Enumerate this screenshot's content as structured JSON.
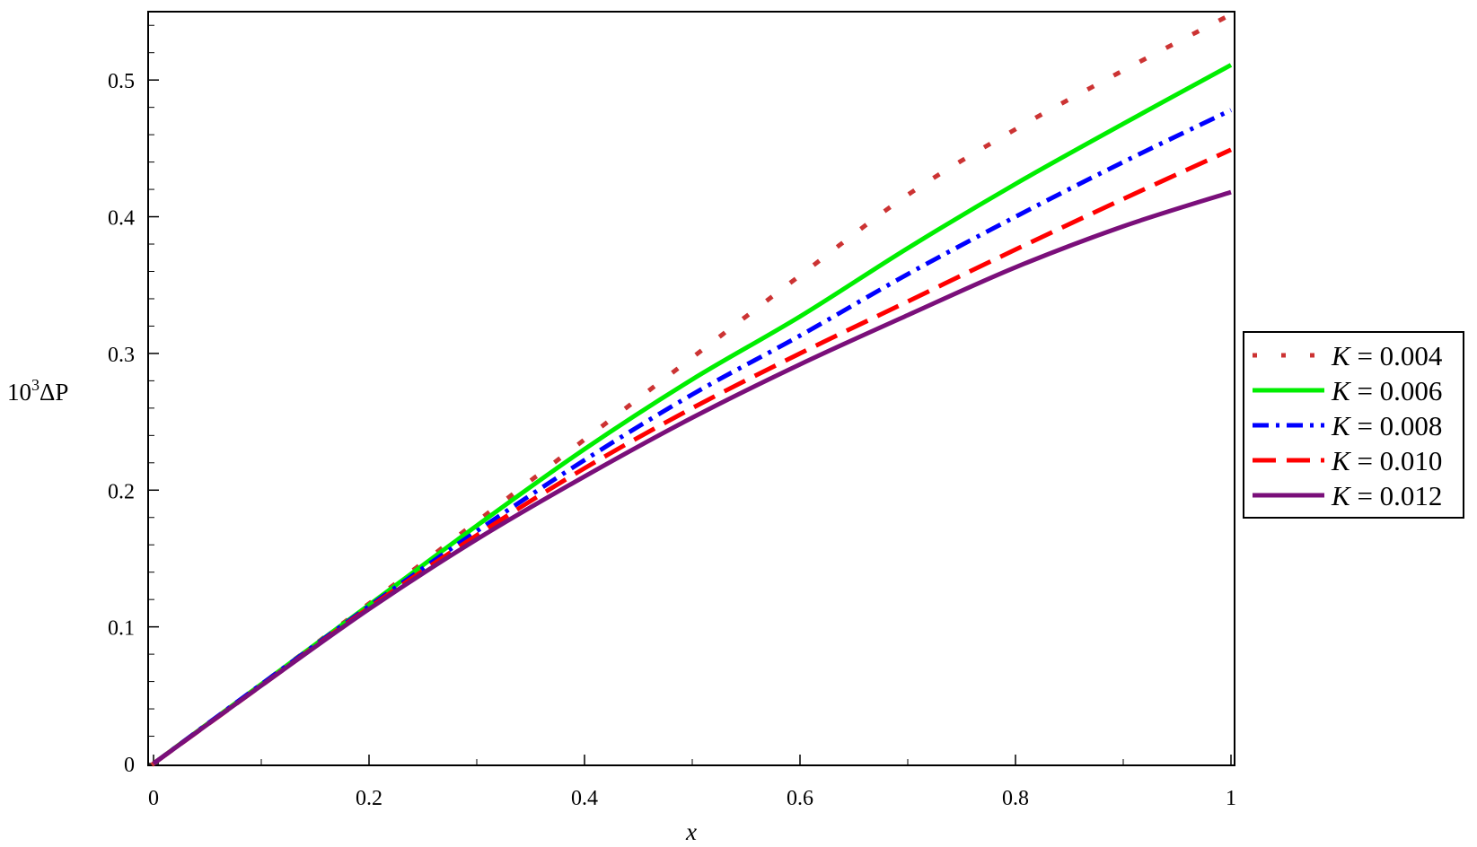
{
  "chart_data": {
    "type": "line",
    "xlabel": "x",
    "ylabel": {
      "base": "10",
      "sup": "3",
      "rest": "ΔP"
    },
    "xlim": [
      0,
      1
    ],
    "ylim": [
      0,
      0.55
    ],
    "xticks": [
      0,
      0.2,
      0.4,
      0.6,
      0.8,
      1
    ],
    "xtick_labels": [
      "0",
      "0.2",
      "0.4",
      "0.6",
      "0.8",
      "1"
    ],
    "yticks": [
      0,
      0.1,
      0.2,
      0.3,
      0.4,
      0.5
    ],
    "ytick_labels": [
      "0",
      "0.1",
      "0.2",
      "0.3",
      "0.4",
      "0.5"
    ],
    "grid": false,
    "legend_position": "right",
    "x": [
      0,
      0.1,
      0.2,
      0.3,
      0.4,
      0.5,
      0.6,
      0.7,
      0.8,
      0.9,
      1.0
    ],
    "series": [
      {
        "name": "K = 0.004",
        "legend_k": "K",
        "legend_value": "= 0.004",
        "color": "#cc3333",
        "style": "dotted",
        "values": [
          0,
          0.058,
          0.117,
          0.177,
          0.237,
          0.297,
          0.357,
          0.416,
          0.464,
          0.507,
          0.548
        ]
      },
      {
        "name": "K = 0.006",
        "legend_k": "K",
        "legend_value": "= 0.006",
        "color": "#00ee00",
        "style": "solid",
        "values": [
          0,
          0.058,
          0.116,
          0.174,
          0.23,
          0.281,
          0.327,
          0.377,
          0.424,
          0.468,
          0.511
        ]
      },
      {
        "name": "K = 0.008",
        "legend_k": "K",
        "legend_value": "= 0.008",
        "color": "#0000ff",
        "style": "dashdot",
        "values": [
          0,
          0.058,
          0.115,
          0.17,
          0.222,
          0.27,
          0.313,
          0.358,
          0.4,
          0.44,
          0.478
        ]
      },
      {
        "name": "K = 0.010",
        "legend_k": "K",
        "legend_value": "= 0.010",
        "color": "#ff0000",
        "style": "dashed",
        "values": [
          0,
          0.057,
          0.114,
          0.167,
          0.216,
          0.26,
          0.3,
          0.338,
          0.376,
          0.413,
          0.449
        ]
      },
      {
        "name": "K = 0.012",
        "legend_k": "K",
        "legend_value": "= 0.012",
        "color": "#7a0f7a",
        "style": "solid",
        "values": [
          0,
          0.057,
          0.113,
          0.164,
          0.21,
          0.253,
          0.292,
          0.328,
          0.363,
          0.393,
          0.418
        ]
      }
    ]
  }
}
